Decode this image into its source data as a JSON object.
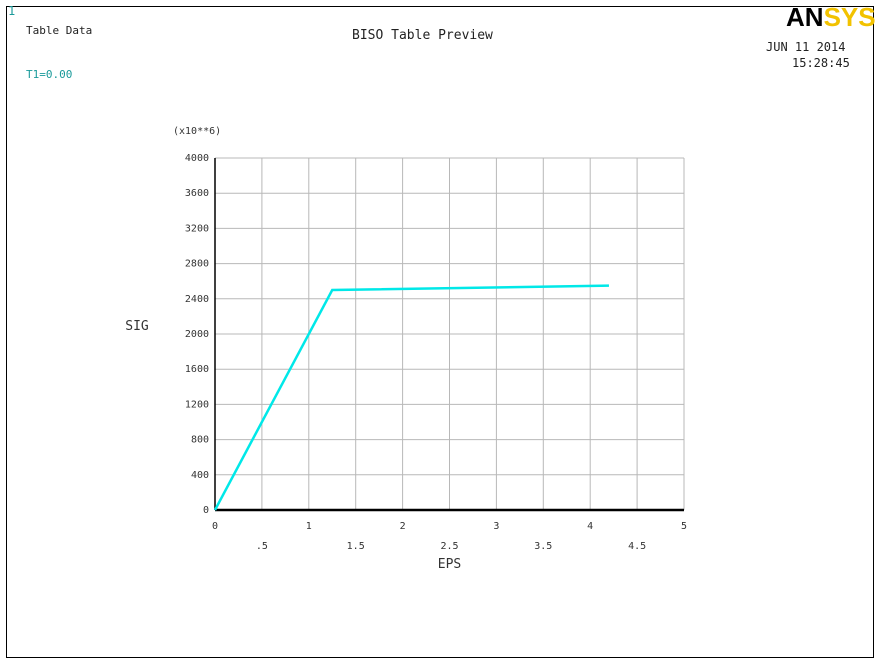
{
  "window": {
    "number": "1",
    "label": "Table Data",
    "title": "BISO Table Preview",
    "date": "JUN 11 2014",
    "time": "15:28:45",
    "temperature_label": "T1=0.00",
    "logo": {
      "part1": "AN",
      "part2": "SYS"
    }
  },
  "colors": {
    "series": "#00e8e8",
    "accent_text": "#1a9a9a",
    "logo_black": "#000000",
    "logo_yellow": "#f2c200"
  },
  "chart_data": {
    "type": "line",
    "title": "BISO Table Preview",
    "xlabel": "EPS",
    "ylabel": "SIG",
    "y_multiplier": "(x10**6)",
    "xlim": [
      0,
      5
    ],
    "ylim": [
      0,
      4000
    ],
    "x_ticks_major": [
      "0",
      "1",
      "2",
      "3",
      "4",
      "5"
    ],
    "x_ticks_minor": [
      ".5",
      "1.5",
      "2.5",
      "3.5",
      "4.5"
    ],
    "y_ticks": [
      "0",
      "400",
      "800",
      "1200",
      "1600",
      "2000",
      "2400",
      "2800",
      "3200",
      "3600",
      "4000"
    ],
    "grid": true,
    "series": [
      {
        "x": [
          0,
          1.25,
          4.2
        ],
        "y": [
          0,
          2500,
          2550
        ]
      }
    ]
  }
}
